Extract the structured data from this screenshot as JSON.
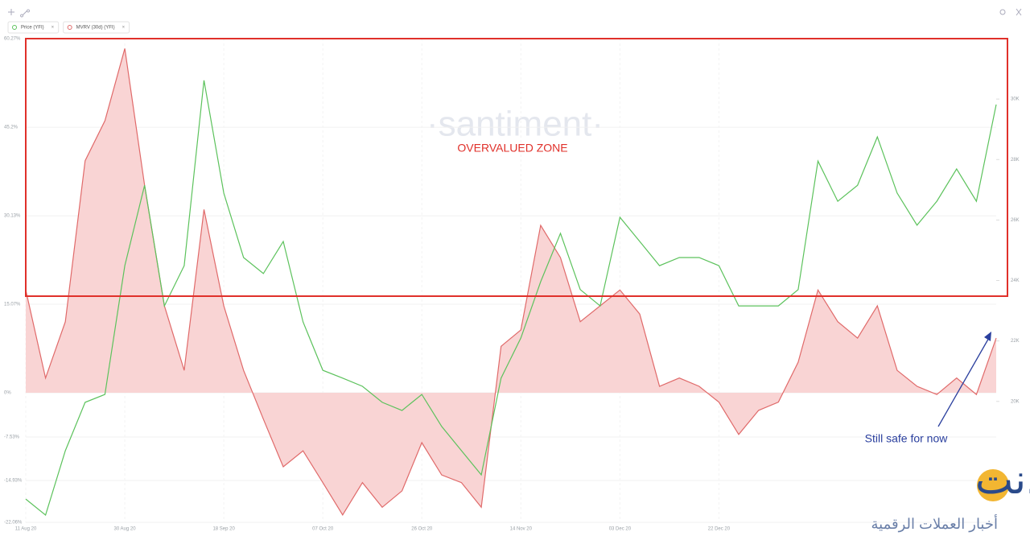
{
  "chart_data": {
    "type": "line-area",
    "annotation": "OVERVALUED ZONE",
    "note": "Still safe for now",
    "watermark": "·santiment·",
    "logo_text": "الكريبتو.نت",
    "logo_subtitle": "أخبار العملات الرقمية",
    "categories": [
      "11 Aug 20",
      null,
      null,
      null,
      null,
      "30 Aug 20",
      null,
      null,
      null,
      null,
      "18 Sep 20",
      null,
      null,
      null,
      null,
      "07 Oct 20",
      null,
      null,
      null,
      null,
      "26 Oct 20",
      null,
      null,
      null,
      null,
      "14 Nov 20",
      null,
      null,
      null,
      null,
      "03 Dec 20",
      null,
      null,
      null,
      null,
      "22 Dec 20",
      null,
      null,
      null,
      null,
      null,
      null,
      null,
      null,
      null,
      null,
      null,
      null,
      null,
      null
    ],
    "series": [
      {
        "name": "MVRV (30d) (YFI)",
        "color": "#e06a6a",
        "fill": "#f9d4d4",
        "axis": "y",
        "values": [
          17.5,
          2.5,
          12.1,
          39.5,
          46.3,
          58.6,
          35.3,
          14.8,
          3.8,
          31.2,
          14.8,
          3.8,
          -4.5,
          -12.6,
          -9.9,
          -15.3,
          -20.8,
          -15.3,
          -19.5,
          -16.7,
          -8.5,
          -14,
          -15.3,
          -19.5,
          7.9,
          10.7,
          28.5,
          23,
          12.1,
          14.8,
          17.5,
          13.4,
          1.1,
          2.5,
          1.1,
          -1.6,
          -7.1,
          -3,
          -1.6,
          5.2,
          17.5,
          12.1,
          9.3,
          14.8,
          3.8,
          1.1,
          -0.3,
          2.5,
          -0.3,
          9.3
        ]
      },
      {
        "name": "Price (YFI)",
        "color": "#5cc25c",
        "axis": "y2",
        "values": [
          16770,
          16240,
          18370,
          19970,
          20230,
          24490,
          27150,
          23160,
          24490,
          30620,
          26890,
          24760,
          24230,
          25290,
          22630,
          21030,
          20770,
          20500,
          19970,
          19700,
          20230,
          19170,
          18370,
          17570,
          20770,
          22100,
          23960,
          25560,
          23700,
          23160,
          26090,
          25290,
          24490,
          24760,
          24760,
          24490,
          23160,
          23160,
          23160,
          23700,
          27950,
          26620,
          27150,
          28750,
          26890,
          25830,
          26620,
          27690,
          26620,
          29820
        ]
      }
    ],
    "ylim": [
      -22.06,
      60.28
    ],
    "yticks": [
      {
        "value": -22.06,
        "label": "-22.06%"
      },
      {
        "value": -14.93,
        "label": "-14.93%"
      },
      {
        "value": -7.53,
        "label": "-7.53%"
      },
      {
        "value": 0,
        "label": "0%"
      },
      {
        "value": 15.07,
        "label": "15.07%"
      },
      {
        "value": 30.13,
        "label": "30.13%"
      },
      {
        "value": 45.2,
        "label": "45.2%"
      },
      {
        "value": 60.27,
        "label": "60.27%"
      }
    ],
    "y2lim": [
      16000,
      32000
    ],
    "y2ticks": [
      {
        "value": 20000,
        "label": "20K"
      },
      {
        "value": 22000,
        "label": "22K"
      },
      {
        "value": 24000,
        "label": "24K"
      },
      {
        "value": 26000,
        "label": "26K"
      },
      {
        "value": 28000,
        "label": "28K"
      },
      {
        "value": 30000,
        "label": "30K"
      }
    ],
    "zone": [
      16.44,
      60.28
    ],
    "grid": true
  }
}
